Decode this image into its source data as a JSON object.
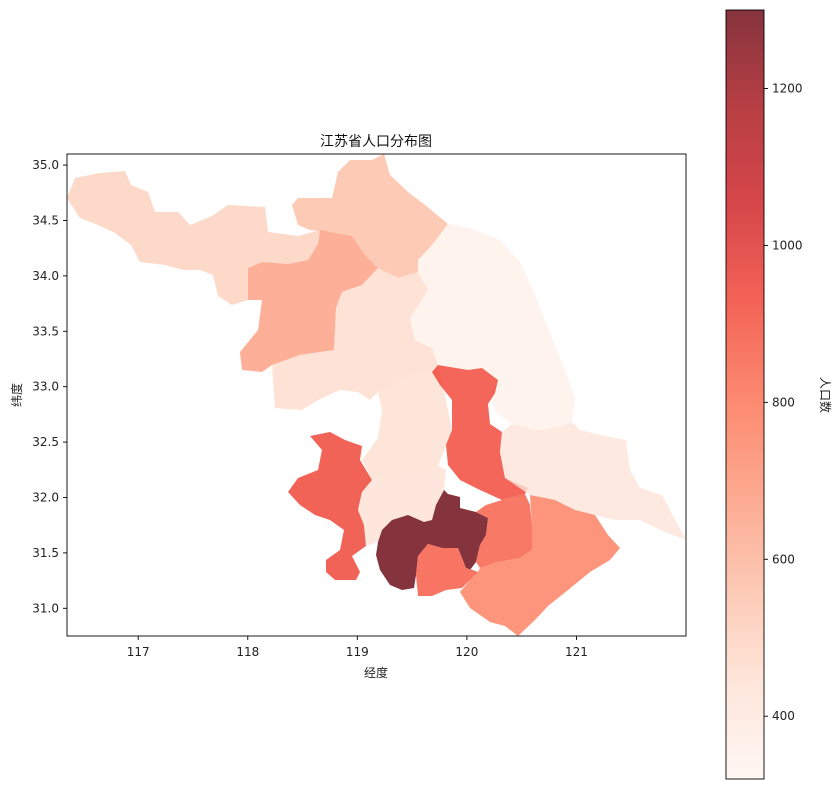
{
  "chart_data": {
    "type": "choropleth",
    "title": "江苏省人口分布图",
    "xlabel": "经度",
    "ylabel": "纬度",
    "xlim": [
      116.35,
      122.0
    ],
    "ylim": [
      30.75,
      35.1
    ],
    "x_ticks": [
      117,
      118,
      119,
      120,
      121
    ],
    "y_ticks": [
      31.0,
      31.5,
      32.0,
      32.5,
      33.0,
      33.5,
      34.0,
      34.5,
      35.0
    ],
    "colorbar": {
      "label": "人口数",
      "range": [
        320,
        1300
      ],
      "ticks": [
        400,
        600,
        800,
        1000,
        1200
      ],
      "colormap": "Reds",
      "alpha": 0.8
    },
    "regions": [
      {
        "id": "xuzhou",
        "value": 500
      },
      {
        "id": "lianyungang",
        "value": 560
      },
      {
        "id": "suqian",
        "value": 660
      },
      {
        "id": "huaian",
        "value": 460
      },
      {
        "id": "yancheng",
        "value": 350
      },
      {
        "id": "yangzhou",
        "value": 450
      },
      {
        "id": "taizhou",
        "value": 920
      },
      {
        "id": "nantong",
        "value": 420
      },
      {
        "id": "nanjing",
        "value": 930
      },
      {
        "id": "zhenjiang",
        "value": 440
      },
      {
        "id": "changzhou",
        "value": 870
      },
      {
        "id": "wuxi",
        "value": 860
      },
      {
        "id": "suzhou",
        "value": 760
      },
      {
        "id": "sunan",
        "value": 1300
      }
    ]
  }
}
